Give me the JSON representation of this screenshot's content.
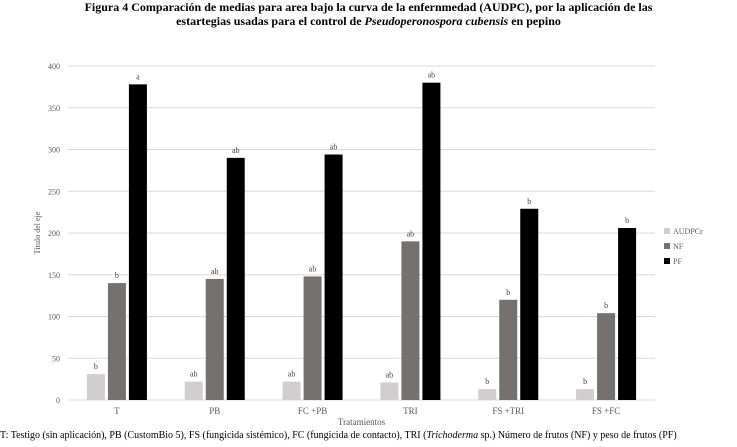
{
  "title": {
    "line1": "Figura 4 Comparación de medias para area bajo la curva de la enfernmedad (AUDPC),  por la aplicación de las",
    "line2_prefix": "estartegias usadas para el control de ",
    "line2_italic": "Pseudoperonospora cubensis",
    "line2_suffix": " en pepino"
  },
  "footnote": {
    "prefix": "T: Testigo (sin aplicación), PB (CustomBio 5), FS (fungicida sistémico), FC (fungicida de contacto), TRI (",
    "italic": "Trichoderma",
    "suffix": " sp.)  Número de frutos (NF) y peso de frutos (PF)"
  },
  "colors": {
    "AUDPCr": "#d0cece",
    "NF": "#767171",
    "PF": "#000000",
    "grid": "#d9d9d9",
    "text": "#595959"
  },
  "chart_data": {
    "type": "bar",
    "xlabel": "Tratamientos",
    "ylabel": "Título del eje",
    "ylim": [
      0,
      400
    ],
    "yticks": [
      0,
      50,
      100,
      150,
      200,
      250,
      300,
      350,
      400
    ],
    "grid": true,
    "legend_position": "right",
    "categories": [
      "T",
      "PB",
      "FC +PB",
      "TRI",
      "FS +TRI",
      "FS +FC"
    ],
    "series": [
      {
        "name": "AUDPCr",
        "values": [
          31,
          22,
          22,
          21,
          13,
          13
        ],
        "letters": [
          "b",
          "ab",
          "ab",
          "ab",
          "b",
          "b"
        ]
      },
      {
        "name": "NF",
        "values": [
          140,
          145,
          148,
          190,
          120,
          104
        ],
        "letters": [
          "b",
          "ab",
          "ab",
          "ab",
          "b",
          "b"
        ]
      },
      {
        "name": "PF",
        "values": [
          378,
          290,
          294,
          380,
          229,
          206
        ],
        "letters": [
          "a",
          "ab",
          "ab",
          "ab",
          "b",
          "b"
        ]
      }
    ]
  }
}
